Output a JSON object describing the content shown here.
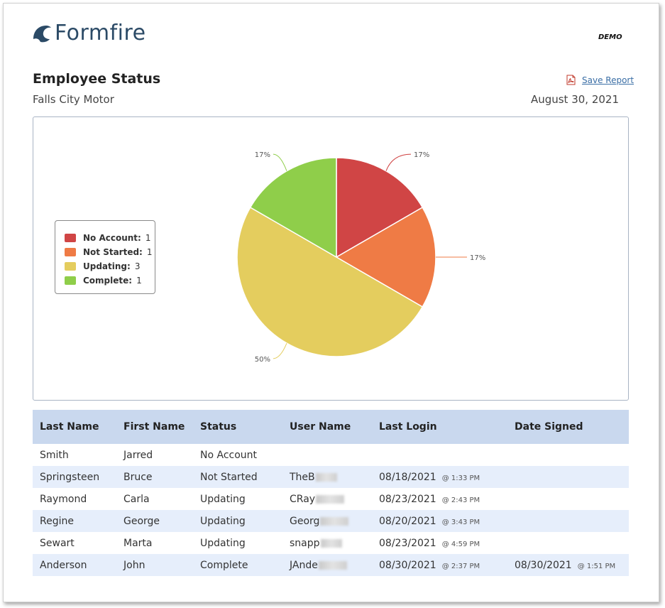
{
  "brand": {
    "logo_text": "Formfire",
    "mode_label": "DEMO"
  },
  "report": {
    "title": "Employee Status",
    "company": "Falls City Motor",
    "date": "August 30, 2021",
    "save_label": "Save Report",
    "save_icon": "pdf-icon"
  },
  "chart_data": {
    "type": "pie",
    "slices": [
      {
        "label": "No Account",
        "value": 1,
        "percent_label": "17%",
        "color": "#d04545"
      },
      {
        "label": "Not Started",
        "value": 1,
        "percent_label": "17%",
        "color": "#ef7b45"
      },
      {
        "label": "Updating",
        "value": 3,
        "percent_label": "50%",
        "color": "#e4cd5e"
      },
      {
        "label": "Complete",
        "value": 1,
        "percent_label": "17%",
        "color": "#8fce4a"
      }
    ],
    "legend_placement": "left"
  },
  "legend": [
    {
      "label": "No Account:",
      "count": "1",
      "color": "#d04545"
    },
    {
      "label": "Not Started:",
      "count": "1",
      "color": "#ef7b45"
    },
    {
      "label": "Updating:",
      "count": "3",
      "color": "#e4cd5e"
    },
    {
      "label": "Complete:",
      "count": "1",
      "color": "#8fce4a"
    }
  ],
  "table": {
    "headers": [
      "Last Name",
      "First Name",
      "Status",
      "User Name",
      "Last Login",
      "Date Signed"
    ],
    "rows": [
      {
        "last": "Smith",
        "first": "Jarred",
        "status": "No Account",
        "user": "",
        "login_date": "",
        "login_time": "",
        "signed_date": "",
        "signed_time": ""
      },
      {
        "last": "Springsteen",
        "first": "Bruce",
        "status": "Not Started",
        "user": "TheB",
        "login_date": "08/18/2021",
        "login_time": "@ 1:33 PM",
        "signed_date": "",
        "signed_time": ""
      },
      {
        "last": "Raymond",
        "first": "Carla",
        "status": "Updating",
        "user": "CRay",
        "login_date": "08/23/2021",
        "login_time": "@ 2:43 PM",
        "signed_date": "",
        "signed_time": ""
      },
      {
        "last": "Regine",
        "first": "George",
        "status": "Updating",
        "user": "Georg",
        "login_date": "08/20/2021",
        "login_time": "@ 3:43 PM",
        "signed_date": "",
        "signed_time": ""
      },
      {
        "last": "Sewart",
        "first": "Marta",
        "status": "Updating",
        "user": "snapp",
        "login_date": "08/23/2021",
        "login_time": "@ 4:59 PM",
        "signed_date": "",
        "signed_time": ""
      },
      {
        "last": "Anderson",
        "first": "John",
        "status": "Complete",
        "user": "JAnde",
        "login_date": "08/30/2021",
        "login_time": "@ 2:37 PM",
        "signed_date": "08/30/2021",
        "signed_time": "@ 1:51 PM"
      }
    ]
  }
}
